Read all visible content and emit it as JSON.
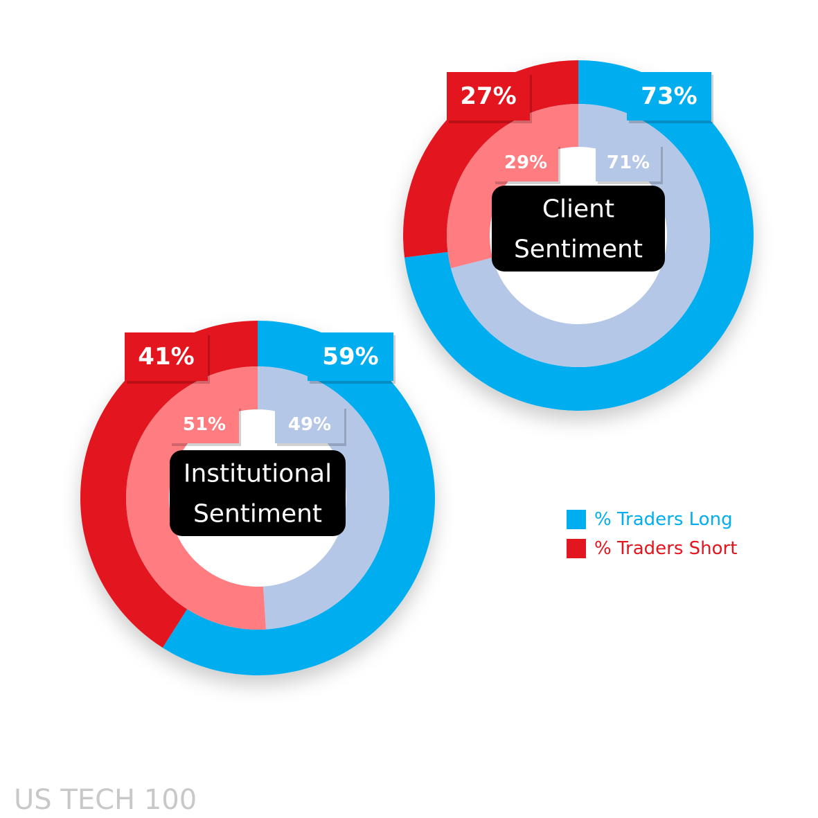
{
  "colors": {
    "long_outer": "#00AEEF",
    "short_outer": "#E3151E",
    "long_inner": "#B4C7E7",
    "short_inner": "#FF7C80",
    "center_box": "#000000",
    "center_text": "#FFFFFF",
    "footer_text": "#C8C8C8"
  },
  "chart_data": [
    {
      "type": "donut",
      "title_lines": [
        "Client",
        "Sentiment"
      ],
      "outer_ring": {
        "long": 73,
        "short": 27,
        "long_label": "73%",
        "short_label": "27%"
      },
      "inner_ring": {
        "long": 71,
        "short": 29,
        "long_label": "71%",
        "short_label": "29%"
      }
    },
    {
      "type": "donut",
      "title_lines": [
        "Institutional",
        "Sentiment"
      ],
      "outer_ring": {
        "long": 59,
        "short": 41,
        "long_label": "59%",
        "short_label": "41%"
      },
      "inner_ring": {
        "long": 49,
        "short": 51,
        "long_label": "49%",
        "short_label": "51%"
      }
    }
  ],
  "legend": {
    "items": [
      {
        "label": "% Traders Long",
        "color": "#00AEEF"
      },
      {
        "label": "% Traders Short",
        "color": "#E3151E"
      }
    ]
  },
  "footer": {
    "instrument": "US TECH 100"
  }
}
